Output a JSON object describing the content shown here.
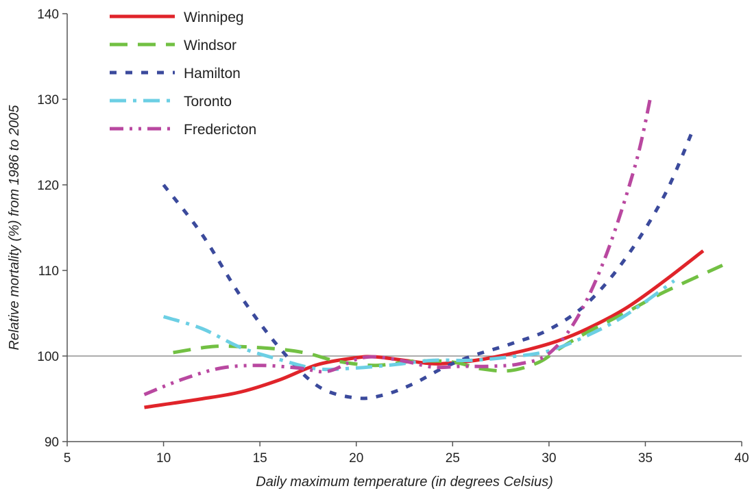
{
  "chart_data": {
    "type": "line",
    "title": "",
    "xlabel": "Daily maximum temperature (in degrees Celsius)",
    "ylabel": "Relative mortality (%) from 1986 to 2005",
    "xlim": [
      5,
      40
    ],
    "ylim": [
      90,
      140
    ],
    "x_ticks": [
      5,
      10,
      15,
      20,
      25,
      30,
      35,
      40
    ],
    "y_ticks": [
      90,
      100,
      110,
      120,
      130,
      140
    ],
    "reference_line_y": 100,
    "grid": false,
    "legend_position": "top-left",
    "series": [
      {
        "name": "Winnipeg",
        "color": "#e0242a",
        "dash": "solid",
        "points": [
          [
            9,
            94
          ],
          [
            12,
            95
          ],
          [
            14,
            95.8
          ],
          [
            16,
            97.2
          ],
          [
            18,
            99
          ],
          [
            20,
            99.8
          ],
          [
            21,
            99.9
          ],
          [
            22.5,
            99.5
          ],
          [
            24,
            99.1
          ],
          [
            25.5,
            99.3
          ],
          [
            27,
            99.8
          ],
          [
            29,
            100.8
          ],
          [
            30.5,
            101.8
          ],
          [
            32,
            103.2
          ],
          [
            34,
            105.6
          ],
          [
            36,
            108.8
          ],
          [
            38,
            112.3
          ]
        ]
      },
      {
        "name": "Windsor",
        "color": "#72c043",
        "dash": "long-dash",
        "points": [
          [
            10.5,
            100.4
          ],
          [
            12.5,
            101.1
          ],
          [
            14,
            101.1
          ],
          [
            16,
            100.8
          ],
          [
            17.5,
            100.3
          ],
          [
            19,
            99.4
          ],
          [
            21,
            98.9
          ],
          [
            23,
            99.4
          ],
          [
            25,
            99.3
          ],
          [
            26.5,
            98.5
          ],
          [
            28,
            98.3
          ],
          [
            29.5,
            99.3
          ],
          [
            30.5,
            100.8
          ],
          [
            32,
            102.8
          ],
          [
            34,
            105.1
          ],
          [
            36,
            107.5
          ],
          [
            39,
            110.6
          ]
        ]
      },
      {
        "name": "Hamilton",
        "color": "#3b4a9c",
        "dash": "short-dash",
        "points": [
          [
            10,
            120
          ],
          [
            12,
            114.2
          ],
          [
            14,
            107
          ],
          [
            16,
            101
          ],
          [
            18,
            96.5
          ],
          [
            20,
            95.1
          ],
          [
            21.5,
            95.5
          ],
          [
            23,
            96.8
          ],
          [
            24.5,
            98.6
          ],
          [
            26,
            100
          ],
          [
            28,
            101.4
          ],
          [
            30,
            103.1
          ],
          [
            32,
            106.2
          ],
          [
            34,
            111.5
          ],
          [
            36,
            118.8
          ],
          [
            37.5,
            126.6
          ]
        ]
      },
      {
        "name": "Toronto",
        "color": "#6ccfe4",
        "dash": "dash-dot",
        "points": [
          [
            10,
            104.6
          ],
          [
            12,
            103.2
          ],
          [
            14,
            101
          ],
          [
            16,
            99.6
          ],
          [
            18,
            98.5
          ],
          [
            20,
            98.6
          ],
          [
            22,
            99
          ],
          [
            24,
            99.5
          ],
          [
            26,
            99.5
          ],
          [
            28,
            99.9
          ],
          [
            30,
            100.6
          ],
          [
            32,
            102.4
          ],
          [
            34,
            104.8
          ],
          [
            36.5,
            108.8
          ]
        ]
      },
      {
        "name": "Fredericton",
        "color": "#b948a0",
        "dash": "dash-dot-dot",
        "points": [
          [
            9,
            95.5
          ],
          [
            11,
            97.3
          ],
          [
            13,
            98.6
          ],
          [
            15,
            98.9
          ],
          [
            17,
            98.6
          ],
          [
            18.5,
            98.2
          ],
          [
            20,
            99.6
          ],
          [
            21,
            99.9
          ],
          [
            22.5,
            99.4
          ],
          [
            24,
            98.7
          ],
          [
            25.5,
            98.8
          ],
          [
            27,
            98.8
          ],
          [
            28.5,
            99.1
          ],
          [
            30,
            100.3
          ],
          [
            31.5,
            104.6
          ],
          [
            33,
            112
          ],
          [
            34.5,
            122.5
          ],
          [
            35.3,
            130.6
          ]
        ]
      }
    ]
  }
}
